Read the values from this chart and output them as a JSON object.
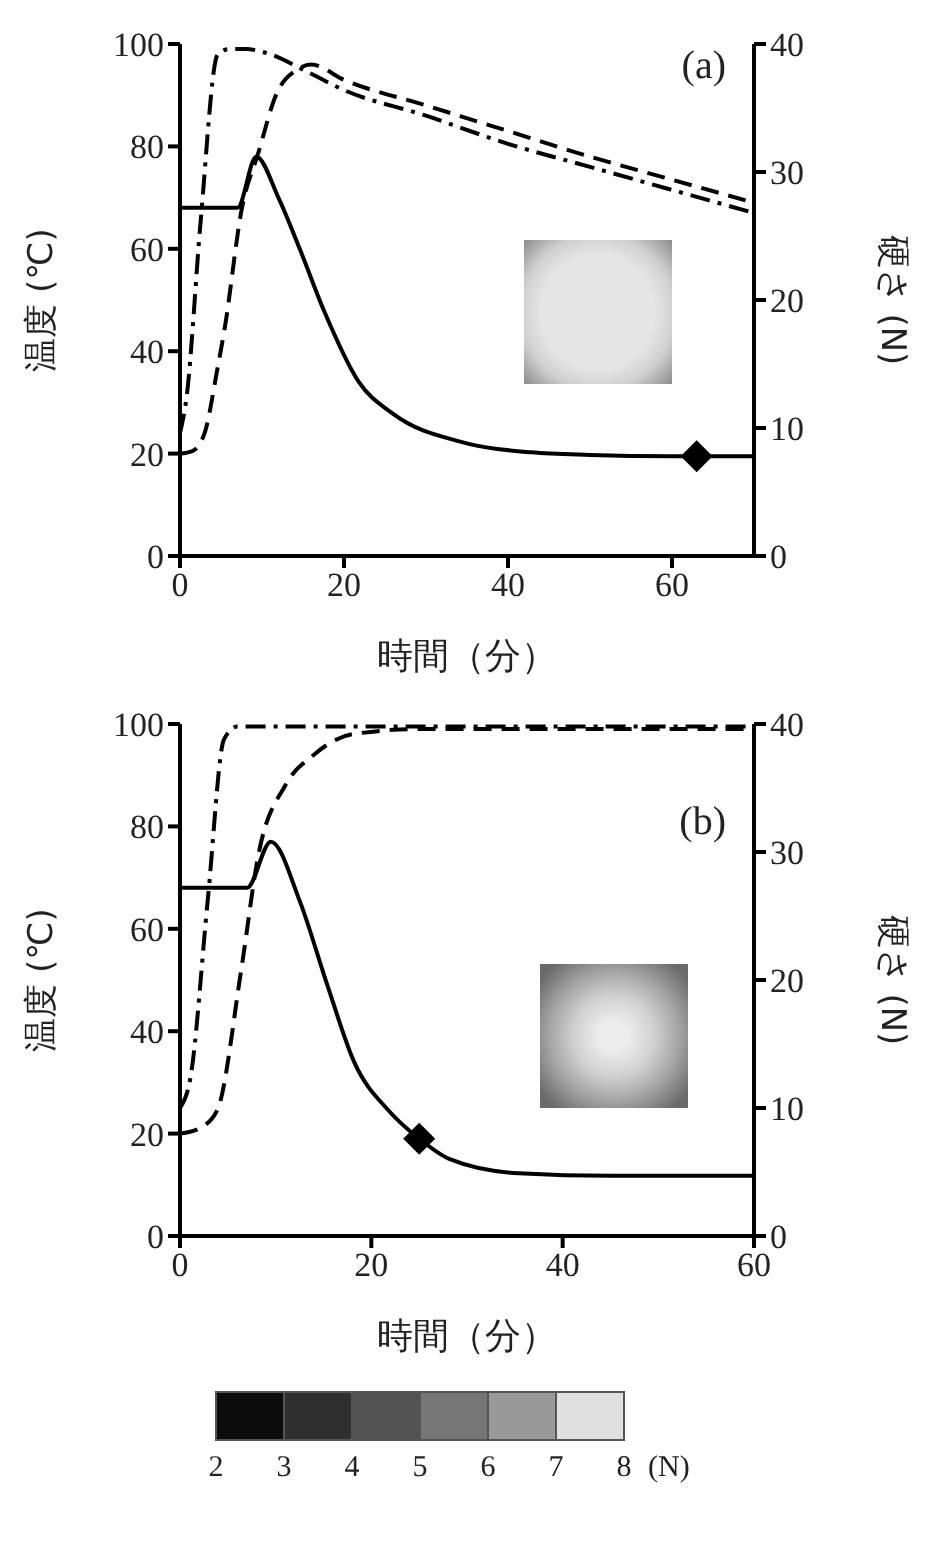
{
  "chart_data": [
    {
      "type": "line",
      "title": "(a)",
      "xlabel": "時間（分）",
      "ylabel": "温度 (℃)",
      "y2label": "硬さ (N)",
      "xlim": [
        0,
        70
      ],
      "xticks": [
        0,
        20,
        40,
        60
      ],
      "ylim": [
        0,
        100
      ],
      "yticks": [
        0,
        20,
        40,
        60,
        80,
        100
      ],
      "y2lim": [
        0,
        40
      ],
      "y2ticks": [
        0,
        10,
        20,
        30,
        40
      ],
      "marker": "none",
      "series": [
        {
          "line_style": "dashdot",
          "color": "#000000",
          "x": [
            0,
            0.8,
            2.5,
            4.6,
            6,
            8,
            11,
            15,
            20,
            30,
            40,
            50,
            60,
            70
          ],
          "values": [
            24,
            31,
            65,
            98,
            99,
            99,
            98,
            95,
            91,
            86,
            80.5,
            76,
            71.5,
            67
          ]
        },
        {
          "line_style": "dashed",
          "color": "#000000",
          "x": [
            0,
            1.5,
            3,
            4.5,
            5.5,
            7.5,
            9.6,
            11.7,
            14.3,
            16,
            20,
            30,
            40,
            50,
            60,
            70
          ],
          "values": [
            20,
            20.5,
            24,
            36,
            45,
            67.5,
            79,
            90,
            95,
            96,
            93,
            88,
            83,
            78,
            73.5,
            69
          ]
        },
        {
          "line_style": "solid",
          "axis": "y2",
          "color": "#000000",
          "x": [
            0,
            7,
            9.3,
            12,
            14.6,
            17.6,
            21.8,
            26,
            34.4,
            42.8,
            50,
            60,
            70
          ],
          "values": [
            27.2,
            27.2,
            31.2,
            28,
            24,
            19.1,
            13.6,
            11.1,
            8.9,
            8.1,
            7.9,
            7.8,
            7.8
          ]
        },
        {
          "type": "scatter",
          "marker": "diamond",
          "axis": "y2",
          "color": "#000000",
          "x": [
            63
          ],
          "values": [
            7.8
          ]
        }
      ]
    },
    {
      "type": "line",
      "title": "(b)",
      "xlabel": "時間（分）",
      "ylabel": "温度 (℃)",
      "y2label": "硬さ (N)",
      "xlim": [
        0,
        60
      ],
      "xticks": [
        0,
        20,
        40,
        60
      ],
      "ylim": [
        0,
        100
      ],
      "yticks": [
        0,
        20,
        40,
        60,
        80,
        100
      ],
      "y2lim": [
        0,
        40
      ],
      "y2ticks": [
        0,
        10,
        20,
        30,
        40
      ],
      "marker": "none",
      "clabel": "(N)",
      "clim": [
        2,
        8
      ],
      "cticks": [
        2,
        3,
        4,
        5,
        6,
        7,
        8
      ],
      "series": [
        {
          "line_style": "dashdot",
          "color": "#000000",
          "x": [
            0,
            1.1,
            2.9,
            4.6,
            6,
            60
          ],
          "values": [
            25,
            31,
            65.6,
            97,
            99.5,
            99.5
          ]
        },
        {
          "line_style": "dashed",
          "color": "#000000",
          "x": [
            0,
            2,
            3.9,
            6.4,
            8.2,
            11,
            14,
            18,
            25,
            60
          ],
          "values": [
            20,
            21,
            24.6,
            52,
            74.5,
            88,
            94,
            98,
            99,
            99
          ]
        },
        {
          "line_style": "solid",
          "axis": "y2",
          "color": "#000000",
          "x": [
            0,
            7,
            9.5,
            12.5,
            15.4,
            18.2,
            21.8,
            25,
            28.2,
            35.4,
            45,
            60
          ],
          "values": [
            27.2,
            27.2,
            30.8,
            26.2,
            19.6,
            13.6,
            9.8,
            7.6,
            6,
            4.9,
            4.7,
            4.7
          ]
        },
        {
          "type": "scatter",
          "marker": "diamond",
          "axis": "y2",
          "color": "#000000",
          "x": [
            25
          ],
          "values": [
            7.6
          ]
        }
      ]
    }
  ]
}
